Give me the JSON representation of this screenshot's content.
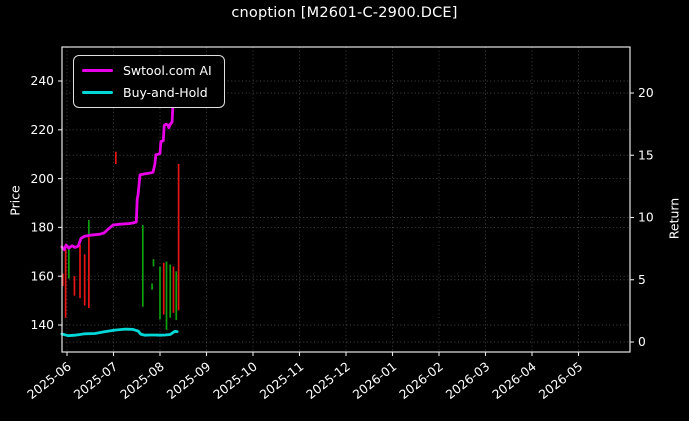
{
  "title": "cnoption [M2601-C-2900.DCE]",
  "colors": {
    "background": "#000000",
    "text": "#ffffff",
    "spine": "#e6e6e6",
    "grid": "#454545",
    "swtool_line": "#e800e8",
    "buyhold_line": "#00d8d8",
    "bar_red": "#e81414",
    "bar_green": "#0fa00f"
  },
  "chart_data": {
    "type": "line",
    "title": "cnoption [M2601-C-2900.DCE]",
    "grid": true,
    "legend_position": "upper left",
    "x_unit": "months offset from 2025-06 tick",
    "x_tick_labels": [
      "2025-06",
      "2025-07",
      "2025-08",
      "2025-09",
      "2025-10",
      "2025-11",
      "2025-12",
      "2026-01",
      "2026-02",
      "2026-03",
      "2026-04",
      "2026-05"
    ],
    "x_range_months": [
      -0.11,
      12.11
    ],
    "y_left": {
      "label": "Price",
      "ticks": [
        240,
        220,
        200,
        180,
        160,
        140
      ],
      "range": [
        128.9,
        253.9
      ]
    },
    "y_right": {
      "label": "Return",
      "ticks": [
        20,
        15,
        10,
        5,
        0
      ],
      "range": [
        -0.8,
        23.7
      ]
    },
    "series": [
      {
        "name": "Swtool.com AI",
        "color": "#e800e8",
        "axis": "left",
        "points": [
          [
            -0.11,
            172.0
          ],
          [
            -0.06,
            170.8
          ],
          [
            -0.02,
            172.8
          ],
          [
            0.04,
            171.5
          ],
          [
            0.11,
            172.5
          ],
          [
            0.17,
            171.8
          ],
          [
            0.24,
            172.3
          ],
          [
            0.3,
            175.5
          ],
          [
            0.37,
            176.3
          ],
          [
            0.5,
            176.8
          ],
          [
            0.71,
            177.2
          ],
          [
            0.8,
            177.8
          ],
          [
            0.88,
            179.2
          ],
          [
            0.99,
            181.0
          ],
          [
            1.14,
            181.3
          ],
          [
            1.31,
            181.5
          ],
          [
            1.42,
            181.8
          ],
          [
            1.49,
            182.2
          ],
          [
            1.51,
            191.5
          ],
          [
            1.53,
            193.5
          ],
          [
            1.57,
            201.5
          ],
          [
            1.68,
            202.0
          ],
          [
            1.79,
            202.3
          ],
          [
            1.85,
            202.6
          ],
          [
            1.89,
            206.0
          ],
          [
            1.91,
            209.8
          ],
          [
            1.96,
            210.0
          ],
          [
            2.0,
            210.3
          ],
          [
            2.02,
            215.2
          ],
          [
            2.07,
            215.5
          ],
          [
            2.09,
            221.8
          ],
          [
            2.13,
            222.3
          ],
          [
            2.17,
            222.0
          ],
          [
            2.19,
            220.8
          ],
          [
            2.22,
            222.2
          ],
          [
            2.26,
            223.2
          ],
          [
            2.28,
            231.0
          ],
          [
            2.31,
            245.3
          ]
        ]
      },
      {
        "name": "Buy-and-Hold",
        "color": "#00d8d8",
        "axis": "left",
        "points": [
          [
            -0.11,
            136.3
          ],
          [
            0.02,
            135.6
          ],
          [
            0.17,
            135.8
          ],
          [
            0.39,
            136.4
          ],
          [
            0.6,
            136.5
          ],
          [
            0.82,
            137.3
          ],
          [
            1.03,
            137.9
          ],
          [
            1.25,
            138.3
          ],
          [
            1.42,
            138.2
          ],
          [
            1.53,
            137.5
          ],
          [
            1.59,
            136.2
          ],
          [
            1.68,
            135.8
          ],
          [
            1.79,
            135.9
          ],
          [
            1.89,
            135.9
          ],
          [
            2.0,
            135.8
          ],
          [
            2.11,
            135.9
          ],
          [
            2.22,
            136.1
          ],
          [
            2.32,
            137.4
          ],
          [
            2.37,
            137.3
          ]
        ]
      }
    ],
    "bar_colors": {
      "red": "#e81414",
      "green": "#0fa00f"
    },
    "price_bars": [
      {
        "m": -0.09,
        "color": "red",
        "high": 161.0,
        "low": 156.0
      },
      {
        "m": -0.03,
        "color": "red",
        "high": 171.0,
        "low": 143.0
      },
      {
        "m": 0.04,
        "color": "green",
        "high": 171.0,
        "low": 159.0
      },
      {
        "m": 0.16,
        "color": "red",
        "high": 160.0,
        "low": 152.0
      },
      {
        "m": 0.28,
        "color": "red",
        "high": 173.0,
        "low": 151.0
      },
      {
        "m": 0.38,
        "color": "red",
        "high": 169.0,
        "low": 148.0
      },
      {
        "m": 0.47,
        "color": "green",
        "high": 183.0,
        "low": 177.0
      },
      {
        "m": 0.47,
        "color": "red",
        "high": 176.0,
        "low": 147.0
      },
      {
        "m": 1.05,
        "color": "red",
        "high": 211.0,
        "low": 206.0
      },
      {
        "m": 1.63,
        "color": "green",
        "high": 181.0,
        "low": 147.5
      },
      {
        "m": 1.83,
        "color": "green",
        "high": 157.0,
        "low": 154.5
      },
      {
        "m": 1.86,
        "color": "green",
        "high": 167.0,
        "low": 164.0
      },
      {
        "m": 2.0,
        "color": "green",
        "high": 164.0,
        "low": 142.3
      },
      {
        "m": 2.08,
        "color": "red",
        "high": 165.5,
        "low": 144.3
      },
      {
        "m": 2.14,
        "color": "green",
        "high": 166.0,
        "low": 138.0
      },
      {
        "m": 2.22,
        "color": "green",
        "high": 164.8,
        "low": 143.0
      },
      {
        "m": 2.29,
        "color": "red",
        "high": 164.0,
        "low": 145.0
      },
      {
        "m": 2.35,
        "color": "green",
        "high": 162.0,
        "low": 142.0
      },
      {
        "m": 2.4,
        "color": "red",
        "high": 206.0,
        "low": 146.0
      }
    ]
  }
}
